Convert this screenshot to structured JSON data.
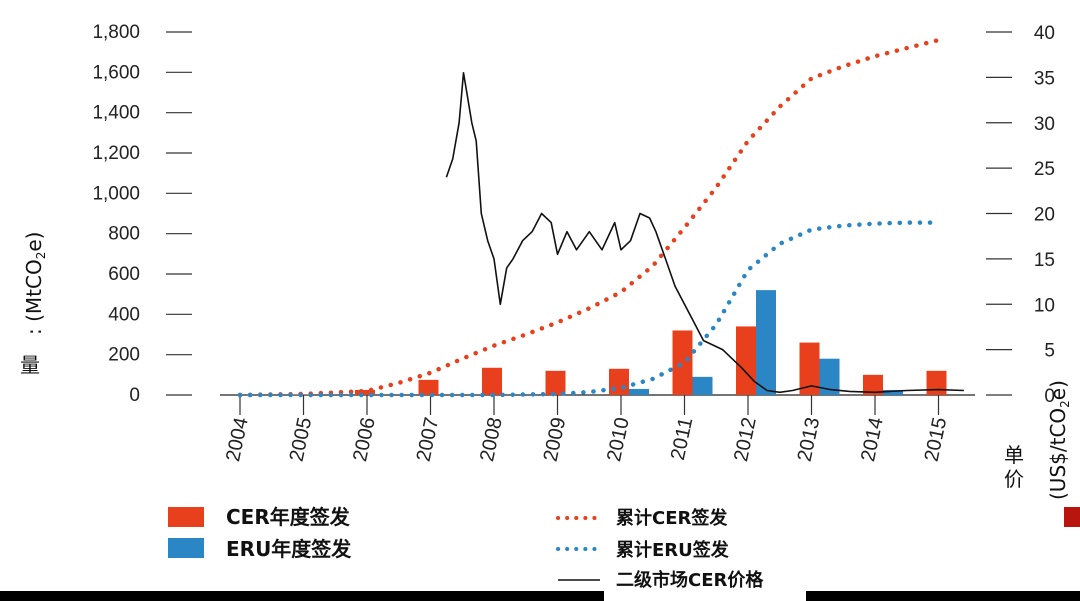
{
  "chart_data": {
    "type": "bar",
    "title": "",
    "ylabel_left_main": "量",
    "ylabel_left_sub": ": (MtCO",
    "ylabel_left_sub_sub": "2",
    "ylabel_left_sub_end": "e)",
    "ylabel_right_main": "单价",
    "ylabel_right_main_1": "单",
    "ylabel_right_main_2": "价",
    "ylabel_right_sub": "(US$/tCO",
    "ylabel_right_sub_sub": "2",
    "ylabel_right_sub_end": "e)",
    "ylim_left": [
      0,
      1800
    ],
    "ylim_right": [
      0,
      40
    ],
    "yticks_left": [
      "0",
      "200",
      "400",
      "600",
      "800",
      "1,000",
      "1,200",
      "1,400",
      "1,600",
      "1,800"
    ],
    "yticks_right": [
      "0",
      "5",
      "10",
      "15",
      "20",
      "25",
      "30",
      "35",
      "40"
    ],
    "categories": [
      "2004",
      "2005",
      "2006",
      "2007",
      "2008",
      "2009",
      "2010",
      "2011",
      "2012",
      "2013",
      "2014",
      "2015"
    ],
    "series": [
      {
        "name": "CER年度签发",
        "kind": "bar",
        "axis": "left",
        "color": "#e8401c",
        "values": [
          0,
          2,
          25,
          75,
          135,
          120,
          130,
          320,
          340,
          260,
          100,
          120
        ]
      },
      {
        "name": "ERU年度签发",
        "kind": "bar",
        "axis": "left",
        "color": "#2b86c5",
        "values": [
          0,
          0,
          0,
          0,
          0,
          0,
          30,
          90,
          520,
          180,
          25,
          0
        ]
      },
      {
        "name": "累计CER签发",
        "kind": "dotted-line",
        "axis": "left",
        "color": "#e8401c",
        "x": [
          2004,
          2005,
          2006,
          2006.5,
          2007,
          2007.5,
          2008,
          2008.5,
          2009,
          2009.5,
          2010,
          2010.5,
          2011,
          2011.5,
          2012,
          2012.5,
          2013,
          2013.5,
          2014,
          2014.5,
          2015
        ],
        "values": [
          0,
          5,
          20,
          60,
          110,
          180,
          245,
          300,
          360,
          430,
          510,
          640,
          830,
          1030,
          1260,
          1430,
          1570,
          1630,
          1680,
          1720,
          1760
        ]
      },
      {
        "name": "累计ERU签发",
        "kind": "dotted-line",
        "axis": "left",
        "color": "#2b86c5",
        "x": [
          2004,
          2005,
          2006,
          2007,
          2008,
          2009,
          2009.5,
          2010,
          2010.5,
          2011,
          2011.5,
          2012,
          2012.5,
          2013,
          2013.5,
          2014,
          2014.5,
          2015
        ],
        "values": [
          0,
          0,
          0,
          0,
          0,
          5,
          15,
          35,
          80,
          160,
          350,
          620,
          750,
          820,
          840,
          850,
          855,
          855
        ]
      },
      {
        "name": "二级市场CER价格",
        "kind": "line",
        "axis": "right",
        "color": "#111111",
        "x": [
          2007.25,
          2007.35,
          2007.45,
          2007.52,
          2007.58,
          2007.65,
          2007.72,
          2007.8,
          2007.9,
          2008.0,
          2008.1,
          2008.2,
          2008.3,
          2008.45,
          2008.6,
          2008.75,
          2008.9,
          2009.0,
          2009.15,
          2009.3,
          2009.5,
          2009.7,
          2009.9,
          2010.0,
          2010.15,
          2010.3,
          2010.45,
          2010.55,
          2010.7,
          2010.85,
          2011.0,
          2011.15,
          2011.3,
          2011.45,
          2011.6,
          2011.75,
          2011.9,
          2012.1,
          2012.3,
          2012.5,
          2012.7,
          2013.0,
          2013.3,
          2013.6,
          2014.0,
          2014.5,
          2015.0,
          2015.4
        ],
        "values": [
          24,
          26,
          30,
          35.5,
          33,
          30,
          28,
          20,
          17,
          15,
          10,
          14,
          15,
          17,
          18,
          20,
          19,
          15.5,
          18,
          16,
          18,
          16,
          19,
          16,
          17,
          20,
          19.5,
          18,
          15,
          12,
          10,
          8,
          6,
          5.5,
          5,
          4,
          3,
          1.5,
          0.5,
          0.3,
          0.5,
          1,
          0.6,
          0.4,
          0.3,
          0.5,
          0.6,
          0.5
        ]
      }
    ],
    "legend": {
      "bars": [
        "CER年度签发",
        "ERU年度签发"
      ],
      "lines": [
        "累计CER签发",
        "累计ERU签发",
        "二级市场CER价格"
      ]
    },
    "grid": false
  }
}
